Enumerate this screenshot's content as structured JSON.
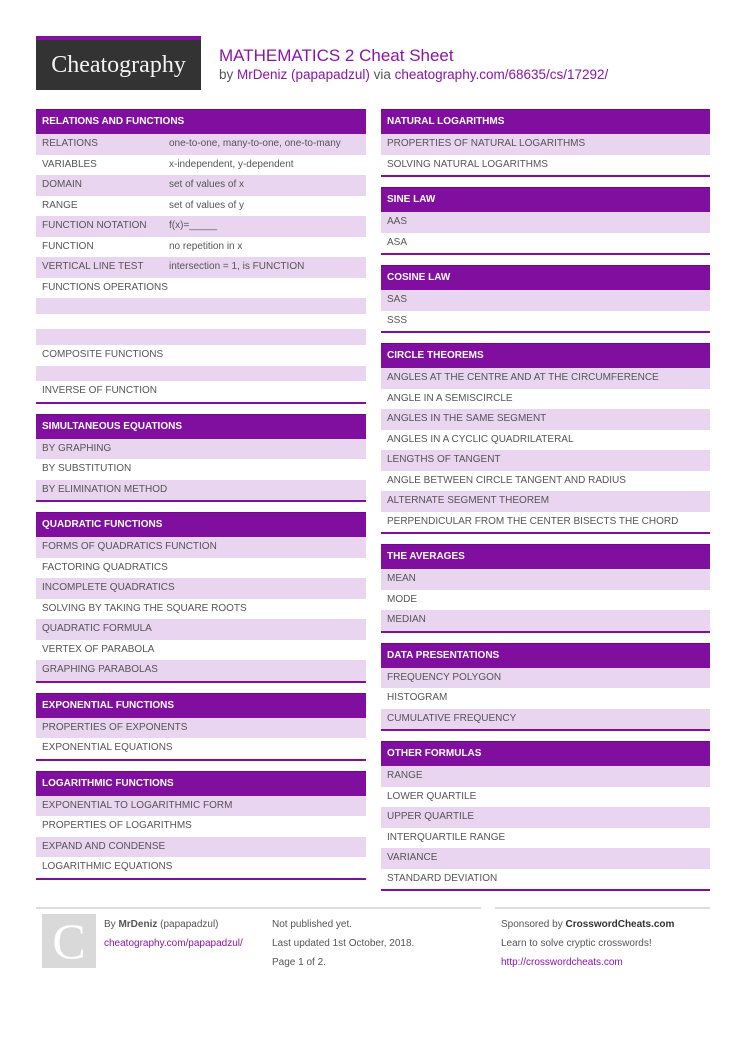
{
  "header": {
    "logo": "Cheatography",
    "title": "MATHEMATICS 2 Cheat Sheet",
    "by": "by",
    "author": "MrDeniz (papapadzul)",
    "via": "via",
    "url": "cheatography.com/68635/cs/17292/"
  },
  "left": [
    {
      "title": "RELATIONS AND FUNCTIONS",
      "rows": [
        {
          "k": "RELATIONS",
          "v": "one-to-one, many-to-one, one-to-many"
        },
        {
          "k": "VARIABLES",
          "v": "x-independent, y-dependent"
        },
        {
          "k": "DOMAIN",
          "v": "set of values of x"
        },
        {
          "k": "RANGE",
          "v": "set of values of y"
        },
        {
          "k": "FUNCTION NOTATION",
          "v": "f(x)=_____"
        },
        {
          "k": "FUNCTION",
          "v": "no repetition in x"
        },
        {
          "k": "VERTICAL LINE TEST",
          "v": "intersection = 1, is FUNCTION"
        },
        {
          "k": "FUNCTIONS OPERATIONS",
          "v": ""
        },
        {
          "k": "",
          "v": "",
          "blank": true
        },
        {
          "k": "",
          "v": "",
          "blank": true
        },
        {
          "k": "",
          "v": "",
          "blank": true
        },
        {
          "k": "COMPOSITE FUNCTIONS",
          "v": ""
        },
        {
          "k": "",
          "v": "",
          "blank": true
        },
        {
          "k": "INVERSE OF FUNCTION",
          "v": ""
        }
      ]
    },
    {
      "title": "SIMULTANEOUS EQUATIONS",
      "rows": [
        {
          "k": "BY GRAPHING"
        },
        {
          "k": "BY SUBSTITUTION"
        },
        {
          "k": "BY ELIMINATION METHOD"
        }
      ]
    },
    {
      "title": "QUADRATIC FUNCTIONS",
      "rows": [
        {
          "k": "FORMS OF QUADRATICS FUNCTION"
        },
        {
          "k": "FACTORING QUADRATICS"
        },
        {
          "k": "INCOMPLETE QUADRATICS"
        },
        {
          "k": "SOLVING BY TAKING THE SQUARE ROOTS"
        },
        {
          "k": "QUADRATIC FORMULA"
        },
        {
          "k": "VERTEX OF PARABOLA"
        },
        {
          "k": "GRAPHING PARABOLAS"
        }
      ]
    },
    {
      "title": "EXPONENTIAL FUNCTIONS",
      "rows": [
        {
          "k": "PROPERTIES OF EXPONENTS"
        },
        {
          "k": "EXPONENTIAL EQUATIONS"
        }
      ]
    },
    {
      "title": "LOGARITHMIC FUNCTIONS",
      "rows": [
        {
          "k": "EXPONENTIAL TO LOGARITHMIC FORM"
        },
        {
          "k": "PROPERTIES OF LOGARITHMS"
        },
        {
          "k": "EXPAND AND CONDENSE"
        },
        {
          "k": "LOGARITHMIC EQUATIONS"
        }
      ]
    }
  ],
  "right": [
    {
      "title": "NATURAL LOGARITHMS",
      "rows": [
        {
          "k": "PROPERTIES OF NATURAL LOGARITHMS"
        },
        {
          "k": "SOLVING NATURAL LOGARITHMS"
        }
      ]
    },
    {
      "title": "SINE LAW",
      "rows": [
        {
          "k": "AAS"
        },
        {
          "k": "ASA"
        }
      ]
    },
    {
      "title": "COSINE LAW",
      "rows": [
        {
          "k": "SAS"
        },
        {
          "k": "SSS"
        }
      ]
    },
    {
      "title": "CIRCLE THEOREMS",
      "rows": [
        {
          "k": "ANGLES AT THE CENTRE AND AT THE CIRCUMFERENCE"
        },
        {
          "k": "ANGLE IN A SEMISCIRCLE"
        },
        {
          "k": "ANGLES IN THE SAME SEGMENT"
        },
        {
          "k": "ANGLES IN A CYCLIC QUADRILATERAL"
        },
        {
          "k": "LENGTHS OF TANGENT"
        },
        {
          "k": "ANGLE BETWEEN CIRCLE TANGENT AND RADIUS"
        },
        {
          "k": "ALTERNATE SEGMENT THEOREM"
        },
        {
          "k": "PERPENDICULAR FROM THE CENTER BISECTS THE CHORD"
        }
      ]
    },
    {
      "title": "THE AVERAGES",
      "rows": [
        {
          "k": "MEAN"
        },
        {
          "k": "MODE"
        },
        {
          "k": "MEDIAN"
        }
      ]
    },
    {
      "title": "DATA PRESENTATIONS",
      "rows": [
        {
          "k": "FREQUENCY POLYGON"
        },
        {
          "k": "HISTOGRAM"
        },
        {
          "k": "CUMULATIVE FREQUENCY"
        }
      ]
    },
    {
      "title": "OTHER FORMULAS",
      "rows": [
        {
          "k": "RANGE"
        },
        {
          "k": "LOWER QUARTILE"
        },
        {
          "k": "UPPER QUARTILE"
        },
        {
          "k": "INTERQUARTILE RANGE"
        },
        {
          "k": "VARIANCE"
        },
        {
          "k": "STANDARD DEVIATION"
        }
      ]
    }
  ],
  "footer": {
    "avatar_letter": "C",
    "by": "By",
    "author": "MrDeniz",
    "handle": "(papapadzul)",
    "author_url": "cheatography.com/papapadzul/",
    "published": "Not published yet.",
    "updated": "Last updated 1st October, 2018.",
    "page": "Page 1 of 2.",
    "sponsored": "Sponsored by",
    "sponsor": "CrosswordCheats.com",
    "sponsor_text": "Learn to solve cryptic crosswords!",
    "sponsor_url": "http://crosswordcheats.com"
  }
}
